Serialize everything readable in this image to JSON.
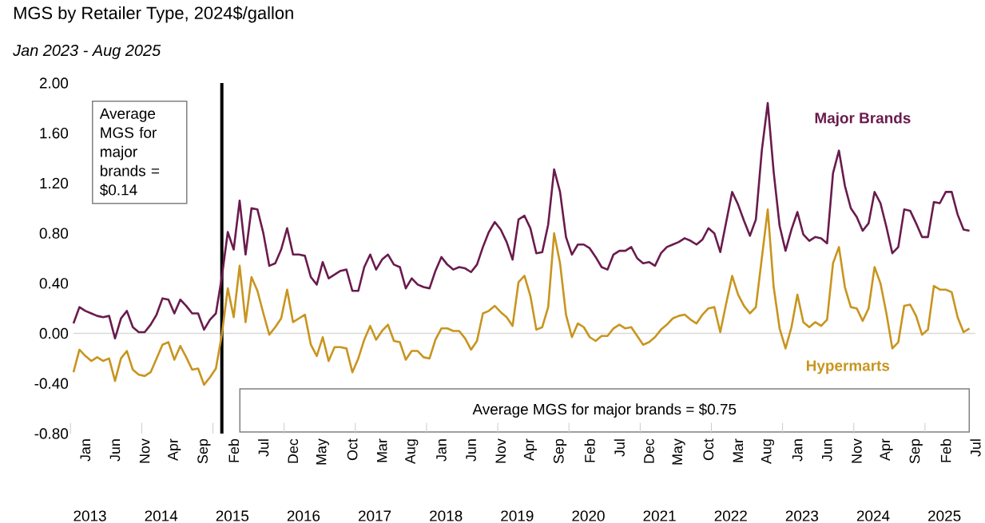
{
  "chart_data": {
    "type": "line",
    "title": "MGS by Retailer Type, 2024$/gallon",
    "subtitle": "Jan 2023 - Aug 2025",
    "categories": [
      null,
      null,
      "Jan",
      null,
      null,
      null,
      null,
      "Jun",
      null,
      null,
      null,
      null,
      "Nov",
      null,
      null,
      null,
      null,
      "Apr",
      null,
      null,
      null,
      null,
      "Sep",
      null,
      null,
      null,
      null,
      "Feb",
      null,
      null,
      null,
      null,
      "Jul",
      null,
      null,
      null,
      null,
      "Dec",
      null,
      null,
      null,
      null,
      "May",
      null,
      null,
      null,
      null,
      "Oct",
      null,
      null,
      null,
      null,
      "Mar",
      null,
      null,
      null,
      null,
      "Aug",
      null,
      null,
      null,
      null,
      "Jan",
      null,
      null,
      null,
      null,
      "Jun",
      null,
      null,
      null,
      null,
      "Nov",
      null,
      null,
      null,
      null,
      "Apr",
      null,
      null,
      null,
      null,
      "Sep",
      null,
      null,
      null,
      null,
      "Feb",
      null,
      null,
      null,
      null,
      "Jul",
      null,
      null,
      null,
      null,
      "Dec",
      null,
      null,
      null,
      null,
      "May",
      null,
      null,
      null,
      null,
      "Oct",
      null,
      null,
      null,
      null,
      "Mar",
      null,
      null,
      null,
      null,
      "Aug",
      null,
      null,
      null,
      null,
      "Jan",
      null,
      null,
      null,
      null,
      "Jun",
      null,
      null,
      null,
      null,
      "Nov",
      null,
      null,
      null,
      null,
      "Apr",
      null,
      null,
      null,
      null,
      "Sep",
      null,
      null,
      null,
      null,
      "Feb",
      null,
      null,
      null,
      null,
      "Jul"
    ],
    "series": [
      {
        "name": "Major Brands",
        "color": "#6a1b4d",
        "values": [
          0.08,
          0.21,
          0.18,
          0.16,
          0.14,
          0.13,
          0.14,
          -0.04,
          0.12,
          0.18,
          0.05,
          0.01,
          0.01,
          0.07,
          0.15,
          0.28,
          0.27,
          0.16,
          0.27,
          0.22,
          0.16,
          0.16,
          0.03,
          0.11,
          0.16,
          0.45,
          0.81,
          0.67,
          1.06,
          0.63,
          1.0,
          0.99,
          0.8,
          0.54,
          0.56,
          0.67,
          0.84,
          0.63,
          0.63,
          0.62,
          0.45,
          0.39,
          0.57,
          0.44,
          0.47,
          0.5,
          0.51,
          0.34,
          0.34,
          0.53,
          0.63,
          0.51,
          0.59,
          0.63,
          0.55,
          0.53,
          0.36,
          0.44,
          0.39,
          0.37,
          0.36,
          0.5,
          0.61,
          0.55,
          0.51,
          0.53,
          0.52,
          0.49,
          0.55,
          0.69,
          0.81,
          0.89,
          0.83,
          0.73,
          0.59,
          0.91,
          0.94,
          0.84,
          0.64,
          0.65,
          0.87,
          1.31,
          1.13,
          0.77,
          0.63,
          0.71,
          0.71,
          0.68,
          0.61,
          0.53,
          0.51,
          0.63,
          0.66,
          0.66,
          0.69,
          0.6,
          0.56,
          0.57,
          0.54,
          0.64,
          0.69,
          0.71,
          0.73,
          0.76,
          0.74,
          0.71,
          0.75,
          0.84,
          0.8,
          0.65,
          0.89,
          1.13,
          1.03,
          0.9,
          0.78,
          0.91,
          1.46,
          1.84,
          1.29,
          0.86,
          0.66,
          0.83,
          0.97,
          0.79,
          0.74,
          0.77,
          0.76,
          0.72,
          1.28,
          1.46,
          1.18,
          1.0,
          0.93,
          0.82,
          0.88,
          1.13,
          1.04,
          0.85,
          0.64,
          0.69,
          0.99,
          0.98,
          0.88,
          0.77,
          0.77,
          1.05,
          1.04,
          1.13,
          1.13,
          0.95,
          0.83,
          0.82,
          null
        ]
      },
      {
        "name": "Hypermarts",
        "color": "#c8951f",
        "values": [
          -0.31,
          -0.13,
          -0.18,
          -0.22,
          -0.19,
          -0.22,
          -0.2,
          -0.38,
          -0.2,
          -0.14,
          -0.29,
          -0.33,
          -0.34,
          -0.31,
          -0.2,
          -0.09,
          -0.07,
          -0.21,
          -0.1,
          -0.19,
          -0.29,
          -0.28,
          -0.41,
          -0.35,
          -0.28,
          -0.01,
          0.36,
          0.13,
          0.54,
          0.09,
          0.45,
          0.34,
          0.16,
          -0.01,
          0.05,
          0.12,
          0.35,
          0.09,
          0.12,
          0.15,
          -0.09,
          -0.18,
          -0.03,
          -0.22,
          -0.11,
          -0.11,
          -0.12,
          -0.31,
          -0.2,
          -0.05,
          0.06,
          -0.05,
          0.02,
          0.07,
          -0.06,
          -0.07,
          -0.21,
          -0.14,
          -0.14,
          -0.19,
          -0.2,
          -0.05,
          0.04,
          0.04,
          0.02,
          0.02,
          -0.04,
          -0.13,
          -0.06,
          0.16,
          0.18,
          0.22,
          0.17,
          0.13,
          0.06,
          0.41,
          0.46,
          0.3,
          0.03,
          0.05,
          0.21,
          0.8,
          0.56,
          0.15,
          -0.03,
          0.08,
          0.05,
          -0.03,
          -0.06,
          -0.02,
          -0.02,
          0.04,
          0.07,
          0.04,
          0.05,
          -0.02,
          -0.09,
          -0.07,
          -0.03,
          0.03,
          0.07,
          0.12,
          0.14,
          0.15,
          0.11,
          0.08,
          0.15,
          0.2,
          0.21,
          0.01,
          0.24,
          0.46,
          0.31,
          0.22,
          0.16,
          0.21,
          0.6,
          0.99,
          0.37,
          0.04,
          -0.12,
          0.05,
          0.31,
          0.09,
          0.05,
          0.09,
          0.06,
          0.11,
          0.56,
          0.69,
          0.37,
          0.21,
          0.2,
          0.1,
          0.2,
          0.53,
          0.4,
          0.16,
          -0.12,
          -0.07,
          0.22,
          0.23,
          0.14,
          -0.01,
          0.03,
          0.38,
          0.35,
          0.35,
          0.33,
          0.13,
          0.01,
          0.04,
          null
        ]
      }
    ],
    "ylim": [
      -0.8,
      2.0
    ],
    "yticks": [
      {
        "value": -0.8,
        "label": "-0.80"
      },
      {
        "value": -0.4,
        "label": "-0.40"
      },
      {
        "value": 0,
        "label": "0.00"
      },
      {
        "value": 0.4,
        "label": "0.40"
      },
      {
        "value": 0.8,
        "label": "0.80"
      },
      {
        "value": 1.2,
        "label": "1.20"
      },
      {
        "value": 1.6,
        "label": "1.60"
      },
      {
        "value": 2.0,
        "label": "2.00"
      }
    ],
    "ref_lines": [
      {
        "axis": "y",
        "value": 0,
        "color": "#d9d9d9"
      }
    ],
    "line_style": "solid",
    "annotations": [
      "Average MGS for major brands = $0.14",
      "Average MGS for major brands = $0.75",
      "2013",
      "2014",
      "2015",
      "2016",
      "2017",
      "2018",
      "2019",
      "2020",
      "2021",
      "2022",
      "2023",
      "2024",
      "2025"
    ]
  }
}
